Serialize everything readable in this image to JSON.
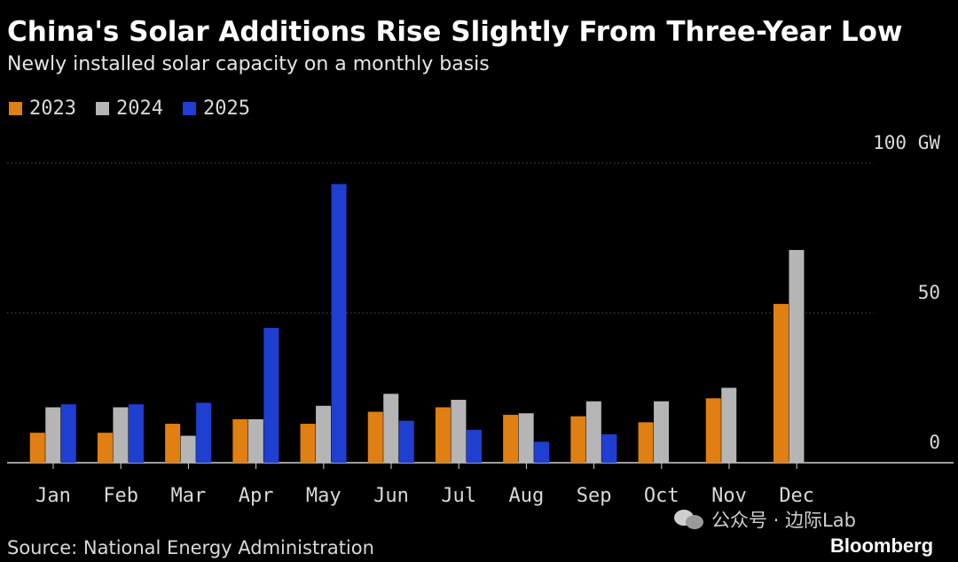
{
  "header": {
    "title": "China's Solar Additions Rise Slightly From Three-Year Low",
    "subtitle": "Newly installed solar capacity on a monthly basis"
  },
  "legend": [
    {
      "label": "2023",
      "color": "#e07f13"
    },
    {
      "label": "2024",
      "color": "#b5b5b5"
    },
    {
      "label": "2025",
      "color": "#1f3fd1"
    }
  ],
  "chart_data": {
    "type": "bar",
    "title": "China's Solar Additions Rise Slightly From Three-Year Low",
    "subtitle": "Newly installed solar capacity on a monthly basis",
    "categories": [
      "Jan",
      "Feb",
      "Mar",
      "Apr",
      "May",
      "Jun",
      "Jul",
      "Aug",
      "Sep",
      "Oct",
      "Nov",
      "Dec"
    ],
    "series": [
      {
        "name": "2023",
        "color": "#e07f13",
        "values": [
          10,
          10,
          13,
          14.5,
          13,
          17,
          18.5,
          16,
          15.5,
          13.5,
          21.5,
          53
        ]
      },
      {
        "name": "2024",
        "color": "#b5b5b5",
        "values": [
          18.5,
          18.5,
          9,
          14.5,
          19,
          23,
          21,
          16.5,
          20.5,
          20.5,
          25,
          71
        ]
      },
      {
        "name": "2025",
        "color": "#1f3fd1",
        "values": [
          19.5,
          19.5,
          20,
          45,
          93,
          14,
          11,
          7,
          9.5,
          null,
          null,
          null
        ]
      }
    ],
    "y_ticks": [
      {
        "value": 0,
        "label": "0"
      },
      {
        "value": 50,
        "label": "50"
      },
      {
        "value": 100,
        "label": "100 GW"
      }
    ],
    "ylim": [
      0,
      100
    ],
    "xlabel": "",
    "ylabel": "",
    "grid": true,
    "legend_position": "top-left"
  },
  "footer": {
    "source": "Source: National Energy Administration",
    "watermark": "公众号 · 边际Lab",
    "brand": "Bloomberg"
  }
}
